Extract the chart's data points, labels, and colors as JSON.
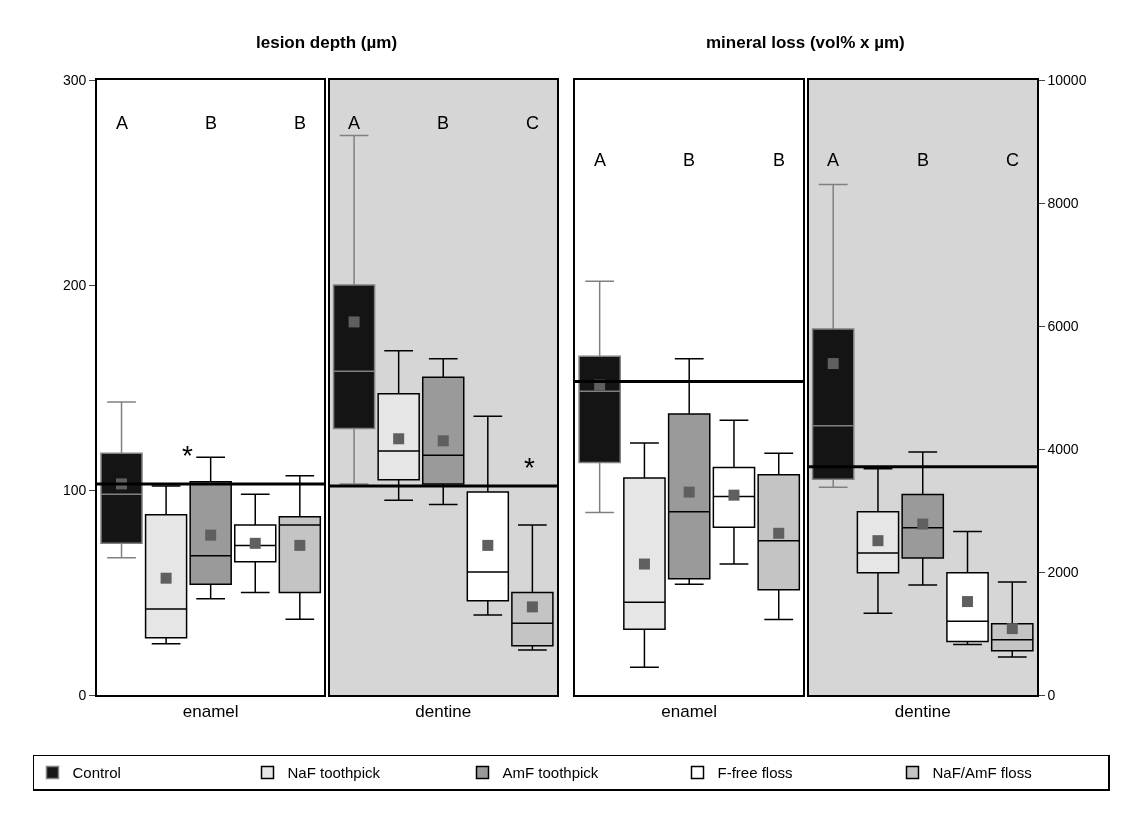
{
  "chart_data": [
    {
      "type": "box",
      "title": "lesion depth (µm)",
      "categories": [
        "enamel",
        "dentine"
      ],
      "ylim": [
        0,
        300
      ],
      "yticks": [
        0,
        100,
        200,
        300
      ],
      "legend": "bottom",
      "marker": "square",
      "annotations": [
        "A",
        "B",
        "B",
        "A",
        "B",
        "C",
        "*",
        "*"
      ],
      "series": [
        {
          "name": "Control",
          "color": "#141414",
          "boxes": [
            {
              "low": 67,
              "q1": 74,
              "median": 98,
              "q3": 118,
              "high": 143,
              "mean": 103
            },
            {
              "low": 103,
              "q1": 130,
              "median": 158,
              "q3": 200,
              "high": 273,
              "mean": 182
            }
          ]
        },
        {
          "name": "NaF toothpick",
          "color": "#e6e6e6",
          "boxes": [
            {
              "low": 25,
              "q1": 28,
              "median": 42,
              "q3": 88,
              "high": 102,
              "mean": 57
            },
            {
              "low": 95,
              "q1": 105,
              "median": 119,
              "q3": 147,
              "high": 168,
              "mean": 125
            }
          ]
        },
        {
          "name": "AmF toothpick",
          "color": "#9a9a9a",
          "boxes": [
            {
              "low": 47,
              "q1": 54,
              "median": 68,
              "q3": 104,
              "high": 116,
              "mean": 78
            },
            {
              "low": 93,
              "q1": 103,
              "median": 117,
              "q3": 155,
              "high": 164,
              "mean": 124
            }
          ]
        },
        {
          "name": "F-free floss",
          "color": "#ffffff",
          "boxes": [
            {
              "low": 50,
              "q1": 65,
              "median": 73,
              "q3": 83,
              "high": 98,
              "mean": 74
            },
            {
              "low": 39,
              "q1": 46,
              "median": 60,
              "q3": 99,
              "high": 136,
              "mean": 73
            }
          ]
        },
        {
          "name": "NaF/AmF floss",
          "color": "#c4c4c4",
          "boxes": [
            {
              "low": 37,
              "q1": 50,
              "median": 83,
              "q3": 87,
              "high": 107,
              "mean": 73
            },
            {
              "low": 22,
              "q1": 24,
              "median": 35,
              "q3": 50,
              "high": 83,
              "mean": 43
            }
          ]
        }
      ],
      "ref_lines": [
        {
          "axis": "y",
          "value": 103
        },
        {
          "axis": "y",
          "value": 102
        }
      ],
      "bands": [
        {
          "axis": "x",
          "from": "dentine",
          "to": "dentine",
          "color": "#d6d6d6"
        }
      ]
    },
    {
      "type": "box",
      "title": "mineral loss (vol% x µm)",
      "categories": [
        "enamel",
        "dentine"
      ],
      "ylim": [
        0,
        10000
      ],
      "yticks": [
        0,
        2000,
        4000,
        6000,
        8000,
        10000
      ],
      "marker": "square",
      "annotations": [
        "A",
        "B",
        "B",
        "A",
        "B",
        "C"
      ],
      "series": [
        {
          "color": "#141414",
          "boxes": [
            {
              "low": 2970,
              "q1": 3780,
              "median": 4940,
              "q3": 5510,
              "high": 6730,
              "mean": 5040
            },
            {
              "low": 3380,
              "q1": 3510,
              "median": 4380,
              "q3": 5950,
              "high": 8300,
              "mean": 5390
            }
          ]
        },
        {
          "color": "#e6e6e6",
          "boxes": [
            {
              "low": 450,
              "q1": 1070,
              "median": 1510,
              "q3": 3530,
              "high": 4100,
              "mean": 2130
            },
            {
              "low": 1330,
              "q1": 1990,
              "median": 2310,
              "q3": 2980,
              "high": 3680,
              "mean": 2510
            }
          ]
        },
        {
          "color": "#9a9a9a",
          "boxes": [
            {
              "low": 1800,
              "q1": 1890,
              "median": 2980,
              "q3": 4570,
              "high": 5470,
              "mean": 3300
            },
            {
              "low": 1790,
              "q1": 2230,
              "median": 2720,
              "q3": 3260,
              "high": 3950,
              "mean": 2780
            }
          ]
        },
        {
          "color": "#ffffff",
          "boxes": [
            {
              "low": 2130,
              "q1": 2730,
              "median": 3230,
              "q3": 3700,
              "high": 4470,
              "mean": 3250
            },
            {
              "low": 820,
              "q1": 870,
              "median": 1200,
              "q3": 1990,
              "high": 2660,
              "mean": 1520
            }
          ]
        },
        {
          "color": "#c4c4c4",
          "boxes": [
            {
              "low": 1230,
              "q1": 1710,
              "median": 2510,
              "q3": 3580,
              "high": 3930,
              "mean": 2630
            },
            {
              "low": 620,
              "q1": 720,
              "median": 900,
              "q3": 1160,
              "high": 1840,
              "mean": 1080
            }
          ]
        }
      ],
      "ref_lines": [
        {
          "axis": "y",
          "value": 5100
        },
        {
          "axis": "y",
          "value": 3710
        }
      ],
      "bands": [
        {
          "axis": "x",
          "from": "dentine",
          "to": "dentine",
          "color": "#d6d6d6"
        }
      ]
    }
  ]
}
